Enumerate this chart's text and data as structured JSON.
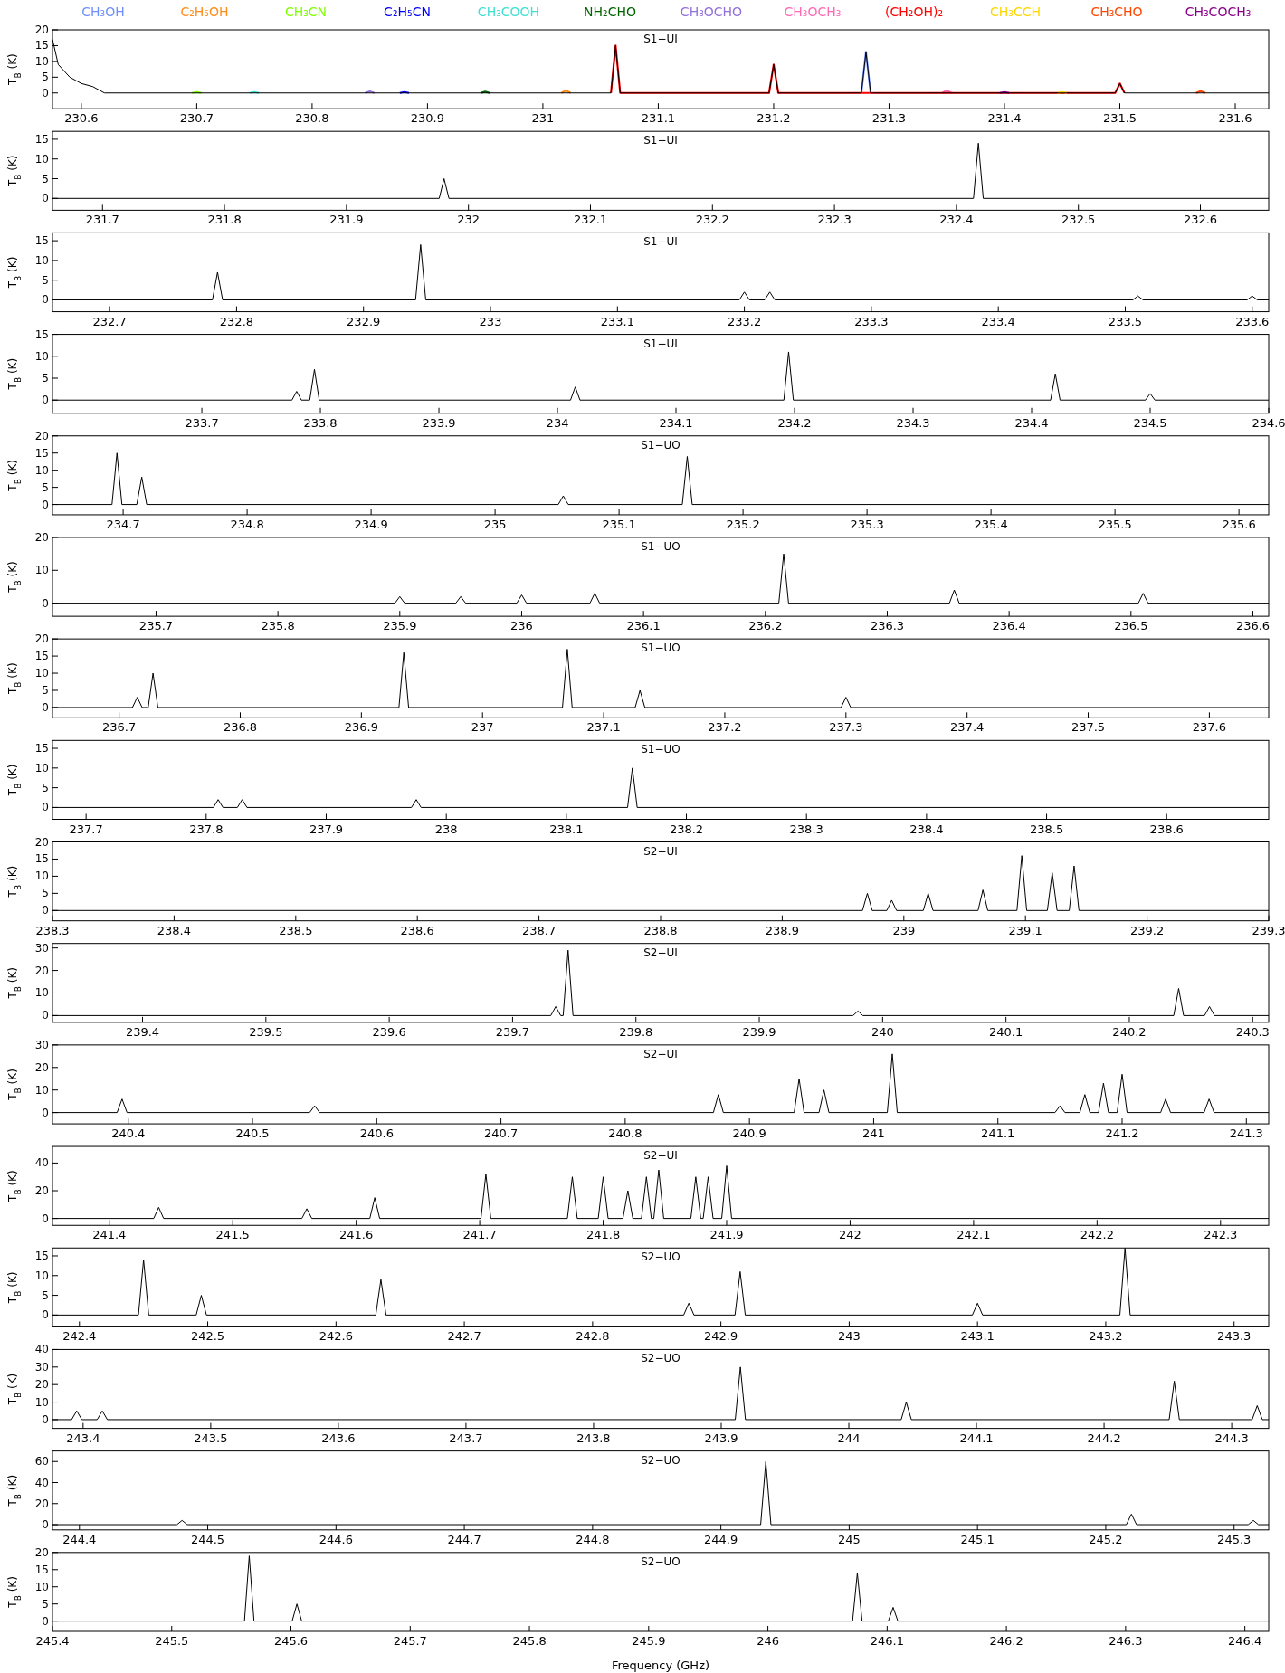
{
  "chart_data": [
    {
      "type": "line",
      "title": "S1−UI",
      "ylabel": "T$_{B}$ (K)",
      "legend": "top",
      "xlim": [
        230.575,
        231.629
      ],
      "xticks": [
        230.6,
        230.7,
        230.8,
        230.9,
        231,
        231.1,
        231.2,
        231.3,
        231.4,
        231.5,
        231.6
      ],
      "ylim": [
        -5,
        20
      ],
      "yticks": [
        0,
        5,
        10,
        15,
        20
      ],
      "series": [
        {
          "color": "#000000",
          "x": [
            230.575,
            230.58,
            230.59,
            230.6,
            230.61,
            230.62,
            231.059,
            231.063,
            231.067,
            231.196,
            231.2,
            231.204,
            231.276,
            231.28,
            231.284,
            231.496,
            231.5,
            231.504,
            231.629
          ],
          "values": [
            17,
            9,
            5,
            3,
            2,
            0,
            0,
            15,
            0,
            0,
            9,
            0,
            0,
            13,
            0,
            0,
            3,
            0,
            0
          ]
        },
        {
          "name": "CH₃OH",
          "color": "#6f8fff",
          "x": [
            231.276,
            231.28,
            231.284
          ],
          "values": [
            0,
            13,
            0
          ]
        },
        {
          "name": "C₂H₅OH",
          "color": "#ff8c1a",
          "x": [
            231.016,
            231.02,
            231.024
          ],
          "values": [
            0,
            0.8,
            0
          ]
        },
        {
          "name": "CH₃CN",
          "color": "#80ff00",
          "x": [
            230.696,
            230.7,
            230.704
          ],
          "values": [
            0,
            0.3,
            0
          ]
        },
        {
          "name": "C₂H₅CN",
          "color": "#0000ff",
          "x": [
            230.876,
            230.88,
            230.884
          ],
          "values": [
            0,
            0.3,
            0
          ]
        },
        {
          "name": "CH₃COOH",
          "color": "#40e0d0",
          "x": [
            230.746,
            230.75,
            230.754
          ],
          "values": [
            0,
            0.3,
            0
          ]
        },
        {
          "name": "NH₂CHO",
          "color": "#006400",
          "x": [
            230.946,
            230.95,
            230.954
          ],
          "values": [
            0,
            0.4,
            0
          ]
        },
        {
          "name": "CH₃OCHO",
          "color": "#9370db",
          "x": [
            230.846,
            230.85,
            230.854
          ],
          "values": [
            0,
            0.5,
            0
          ]
        },
        {
          "name": "CH₃OCH₃",
          "color": "#ff69b4",
          "x": [
            231.346,
            231.35,
            231.354
          ],
          "values": [
            0,
            0.8,
            0
          ]
        },
        {
          "name": "(CH₂OH)₂",
          "color": "#ff0000",
          "x": [
            231.059,
            231.063,
            231.067,
            231.196,
            231.2,
            231.204,
            231.496,
            231.5,
            231.504
          ],
          "values": [
            0,
            15,
            0,
            0,
            9,
            0,
            0,
            3,
            0
          ]
        },
        {
          "name": "CH₃CCH",
          "color": "#ffd700",
          "x": [
            231.446,
            231.45,
            231.454
          ],
          "values": [
            0,
            0.3,
            0
          ]
        },
        {
          "name": "CH₃CHO",
          "color": "#ff4500",
          "x": [
            231.566,
            231.57,
            231.574
          ],
          "values": [
            0,
            0.6,
            0
          ]
        },
        {
          "name": "CH₃COCH₃",
          "color": "#8b008b",
          "x": [
            231.396,
            231.4,
            231.404
          ],
          "values": [
            0,
            0.3,
            0
          ]
        }
      ]
    },
    {
      "type": "line",
      "title": "S1−UI",
      "ylabel": "T$_{B}$ (K)",
      "xlim": [
        231.659,
        232.656
      ],
      "xticks": [
        231.7,
        231.8,
        231.9,
        232,
        232.1,
        232.2,
        232.3,
        232.4,
        232.5,
        232.6
      ],
      "ylim": [
        -3,
        17
      ],
      "yticks": [
        0,
        5,
        10,
        15
      ],
      "series": [
        {
          "color": "#000000",
          "x": [
            231.659,
            231.976,
            231.98,
            231.984,
            232.414,
            232.418,
            232.422,
            232.656
          ],
          "values": [
            0,
            0,
            5,
            0,
            0,
            14,
            0,
            0
          ]
        }
      ]
    },
    {
      "type": "line",
      "title": "S1−UI",
      "ylabel": "T$_{B}$ (K)",
      "xlim": [
        232.655,
        233.613
      ],
      "xticks": [
        232.7,
        232.8,
        232.9,
        233,
        233.1,
        233.2,
        233.3,
        233.4,
        233.5,
        233.6
      ],
      "ylim": [
        -3,
        17
      ],
      "yticks": [
        0,
        5,
        10,
        15
      ],
      "series": [
        {
          "color": "#000000",
          "x": [
            232.655,
            232.781,
            232.785,
            232.789,
            232.941,
            232.945,
            232.949,
            233.196,
            233.2,
            233.204,
            233.216,
            233.22,
            233.224,
            233.506,
            233.51,
            233.514,
            233.596,
            233.6,
            233.604,
            233.613
          ],
          "values": [
            0,
            0,
            7,
            0,
            0,
            14,
            0,
            0,
            2,
            0,
            0,
            2,
            0,
            0,
            1,
            0,
            0,
            1,
            0,
            0
          ]
        }
      ]
    },
    {
      "type": "line",
      "title": "S1−UI",
      "ylabel": "T$_{B}$ (K)",
      "xlim": [
        233.574,
        234.6
      ],
      "xticks": [
        233.7,
        233.8,
        233.9,
        234,
        234.1,
        234.2,
        234.3,
        234.4,
        234.5,
        234.6
      ],
      "ylim": [
        -3,
        15
      ],
      "yticks": [
        0,
        5,
        10,
        15
      ],
      "series": [
        {
          "color": "#000000",
          "x": [
            233.574,
            233.776,
            233.78,
            233.784,
            233.791,
            233.795,
            233.799,
            234.011,
            234.015,
            234.019,
            234.191,
            234.195,
            234.199,
            234.416,
            234.42,
            234.424,
            234.496,
            234.5,
            234.504,
            234.6
          ],
          "values": [
            0,
            0,
            2,
            0,
            0,
            7,
            0,
            0,
            3,
            0,
            0,
            11,
            0,
            0,
            6,
            0,
            0,
            1.5,
            0,
            0
          ]
        }
      ]
    },
    {
      "type": "line",
      "title": "S1−UO",
      "ylabel": "T$_{B}$ (K)",
      "xlim": [
        234.643,
        235.624
      ],
      "xticks": [
        234.7,
        234.8,
        234.9,
        235,
        235.1,
        235.2,
        235.3,
        235.4,
        235.5,
        235.6
      ],
      "ylim": [
        -3,
        20
      ],
      "yticks": [
        0,
        5,
        10,
        15,
        20
      ],
      "series": [
        {
          "color": "#000000",
          "x": [
            234.643,
            234.691,
            234.695,
            234.699,
            234.711,
            234.715,
            234.719,
            235.051,
            235.055,
            235.059,
            235.151,
            235.155,
            235.159,
            235.624
          ],
          "values": [
            0,
            0,
            15,
            0,
            0,
            8,
            0,
            0,
            2.5,
            0,
            0,
            14,
            0,
            0
          ]
        }
      ]
    },
    {
      "type": "line",
      "title": "S1−UO",
      "ylabel": "T$_{B}$ (K)",
      "xlim": [
        235.615,
        236.613
      ],
      "xticks": [
        235.7,
        235.8,
        235.9,
        236,
        236.1,
        236.2,
        236.3,
        236.4,
        236.5,
        236.6
      ],
      "ylim": [
        -4,
        20
      ],
      "yticks": [
        0,
        10,
        20
      ],
      "series": [
        {
          "color": "#000000",
          "x": [
            235.615,
            235.896,
            235.9,
            235.904,
            235.946,
            235.95,
            235.954,
            235.996,
            236,
            236.004,
            236.056,
            236.06,
            236.064,
            236.211,
            236.215,
            236.219,
            236.351,
            236.355,
            236.359,
            236.506,
            236.51,
            236.514,
            236.613
          ],
          "values": [
            0,
            0,
            2,
            0,
            0,
            2,
            0,
            0,
            2.5,
            0,
            0,
            3,
            0,
            0,
            15,
            0,
            0,
            4,
            0,
            0,
            3,
            0,
            0
          ]
        }
      ]
    },
    {
      "type": "line",
      "title": "S1−UO",
      "ylabel": "T$_{B}$ (K)",
      "xlim": [
        236.645,
        237.649
      ],
      "xticks": [
        236.7,
        236.8,
        236.9,
        237,
        237.1,
        237.2,
        237.3,
        237.4,
        237.5,
        237.6
      ],
      "ylim": [
        -3,
        20
      ],
      "yticks": [
        0,
        5,
        10,
        15,
        20
      ],
      "series": [
        {
          "color": "#000000",
          "x": [
            236.645,
            236.711,
            236.715,
            236.719,
            236.724,
            236.728,
            236.732,
            236.931,
            236.935,
            236.939,
            237.066,
            237.07,
            237.074,
            237.126,
            237.13,
            237.134,
            237.296,
            237.3,
            237.304,
            237.649
          ],
          "values": [
            0,
            0,
            3,
            0,
            0,
            10,
            0,
            0,
            16,
            0,
            0,
            17,
            0,
            0,
            5,
            0,
            0,
            3,
            0,
            0
          ]
        }
      ]
    },
    {
      "type": "line",
      "title": "S1−UO",
      "ylabel": "T$_{B}$ (K)",
      "xlim": [
        237.672,
        238.685
      ],
      "xticks": [
        237.7,
        237.8,
        237.9,
        238,
        238.1,
        238.2,
        238.3,
        238.4,
        238.5,
        238.6
      ],
      "ylim": [
        -3,
        17
      ],
      "yticks": [
        0,
        5,
        10,
        15
      ],
      "series": [
        {
          "color": "#000000",
          "x": [
            237.672,
            237.806,
            237.81,
            237.814,
            237.826,
            237.83,
            237.834,
            237.971,
            237.975,
            237.979,
            238.151,
            238.155,
            238.159,
            238.685
          ],
          "values": [
            0,
            0,
            2,
            0,
            0,
            2,
            0,
            0,
            2,
            0,
            0,
            10,
            0,
            0
          ]
        }
      ]
    },
    {
      "type": "line",
      "title": "S2−UI",
      "ylabel": "T$_{B}$ (K)",
      "xlim": [
        238.3,
        239.3
      ],
      "xticks": [
        238.3,
        238.4,
        238.5,
        238.6,
        238.7,
        238.8,
        238.9,
        239,
        239.1,
        239.2,
        239.3
      ],
      "ylim": [
        -3,
        20
      ],
      "yticks": [
        0,
        5,
        10,
        15,
        20
      ],
      "series": [
        {
          "color": "#000000",
          "x": [
            238.3,
            238.966,
            238.97,
            238.974,
            238.986,
            238.99,
            238.994,
            239.016,
            239.02,
            239.024,
            239.061,
            239.065,
            239.069,
            239.093,
            239.097,
            239.101,
            239.118,
            239.122,
            239.126,
            239.136,
            239.14,
            239.144,
            239.3
          ],
          "values": [
            0,
            0,
            5,
            0,
            0,
            3,
            0,
            0,
            5,
            0,
            0,
            6,
            0,
            0,
            16,
            0,
            0,
            11,
            0,
            0,
            13,
            0,
            0
          ]
        }
      ]
    },
    {
      "type": "line",
      "title": "S2−UI",
      "ylabel": "T$_{B}$ (K)",
      "xlim": [
        239.327,
        240.313
      ],
      "xticks": [
        239.4,
        239.5,
        239.6,
        239.7,
        239.8,
        239.9,
        240,
        240.1,
        240.2,
        240.3
      ],
      "ylim": [
        -3,
        32
      ],
      "yticks": [
        0,
        10,
        20,
        30
      ],
      "series": [
        {
          "color": "#000000",
          "x": [
            239.327,
            239.731,
            239.735,
            239.739,
            239.741,
            239.745,
            239.749,
            239.976,
            239.98,
            239.984,
            240.236,
            240.24,
            240.244,
            240.261,
            240.265,
            240.269,
            240.313
          ],
          "values": [
            0,
            0,
            4,
            0,
            0,
            29,
            0,
            0,
            2,
            0,
            0,
            12,
            0,
            0,
            4,
            0,
            0
          ]
        }
      ]
    },
    {
      "type": "line",
      "title": "S2−UI",
      "ylabel": "T$_{B}$ (K)",
      "xlim": [
        240.339,
        241.318
      ],
      "xticks": [
        240.4,
        240.5,
        240.6,
        240.7,
        240.8,
        240.9,
        241,
        241.1,
        241.2,
        241.3
      ],
      "ylim": [
        -5,
        30
      ],
      "yticks": [
        0,
        10,
        20,
        30
      ],
      "series": [
        {
          "color": "#000000",
          "x": [
            240.339,
            240.391,
            240.395,
            240.399,
            240.546,
            240.55,
            240.554,
            240.871,
            240.875,
            240.879,
            240.936,
            240.94,
            240.944,
            240.956,
            240.96,
            240.964,
            241.011,
            241.015,
            241.019,
            241.146,
            241.15,
            241.154,
            241.166,
            241.17,
            241.174,
            241.181,
            241.185,
            241.189,
            241.196,
            241.2,
            241.204,
            241.231,
            241.235,
            241.239,
            241.266,
            241.27,
            241.274,
            241.318
          ],
          "values": [
            0,
            0,
            6,
            0,
            0,
            3,
            0,
            0,
            8,
            0,
            0,
            15,
            0,
            0,
            10,
            0,
            0,
            26,
            0,
            0,
            3,
            0,
            0,
            8,
            0,
            0,
            13,
            0,
            0,
            17,
            0,
            0,
            6,
            0,
            0,
            6,
            0,
            0
          ]
        }
      ]
    },
    {
      "type": "line",
      "title": "S2−UI",
      "ylabel": "T$_{B}$ (K)",
      "xlim": [
        241.354,
        242.339
      ],
      "xticks": [
        241.4,
        241.5,
        241.6,
        241.7,
        241.8,
        241.9,
        242,
        242.1,
        242.2,
        242.3
      ],
      "ylim": [
        -5,
        52
      ],
      "yticks": [
        0,
        20,
        40
      ],
      "series": [
        {
          "color": "#000000",
          "x": [
            241.354,
            241.436,
            241.44,
            241.444,
            241.556,
            241.56,
            241.564,
            241.611,
            241.615,
            241.619,
            241.701,
            241.705,
            241.709,
            241.771,
            241.775,
            241.779,
            241.796,
            241.8,
            241.804,
            241.816,
            241.82,
            241.824,
            241.831,
            241.835,
            241.839,
            241.841,
            241.845,
            241.849,
            241.871,
            241.875,
            241.879,
            241.881,
            241.885,
            241.889,
            241.896,
            241.9,
            241.904,
            242.339
          ],
          "values": [
            0,
            0,
            8,
            0,
            0,
            7,
            0,
            0,
            15,
            0,
            0,
            32,
            0,
            0,
            30,
            0,
            0,
            30,
            0,
            0,
            20,
            0,
            0,
            30,
            0,
            0,
            35,
            0,
            0,
            30,
            0,
            0,
            30,
            0,
            0,
            38,
            0,
            0
          ]
        }
      ]
    },
    {
      "type": "line",
      "title": "S2−UO",
      "ylabel": "T$_{B}$ (K)",
      "xlim": [
        242.379,
        243.327
      ],
      "xticks": [
        242.4,
        242.5,
        242.6,
        242.7,
        242.8,
        242.9,
        243,
        243.1,
        243.2,
        243.3
      ],
      "ylim": [
        -3,
        17
      ],
      "yticks": [
        0,
        5,
        10,
        15
      ],
      "series": [
        {
          "color": "#000000",
          "x": [
            242.379,
            242.446,
            242.45,
            242.454,
            242.491,
            242.495,
            242.499,
            242.631,
            242.635,
            242.639,
            242.871,
            242.875,
            242.879,
            242.911,
            242.915,
            242.919,
            243.096,
            243.1,
            243.104,
            243.211,
            243.215,
            243.219,
            243.327
          ],
          "values": [
            0,
            0,
            14,
            0,
            0,
            5,
            0,
            0,
            9,
            0,
            0,
            3,
            0,
            0,
            11,
            0,
            0,
            3,
            0,
            0,
            17,
            0,
            0
          ]
        }
      ]
    },
    {
      "type": "line",
      "title": "S2−UO",
      "ylabel": "T$_{B}$ (K)",
      "xlim": [
        243.376,
        244.329
      ],
      "xticks": [
        243.4,
        243.5,
        243.6,
        243.7,
        243.8,
        243.9,
        244,
        244.1,
        244.2,
        244.3
      ],
      "ylim": [
        -5,
        40
      ],
      "yticks": [
        0,
        10,
        20,
        30,
        40
      ],
      "series": [
        {
          "color": "#000000",
          "x": [
            243.376,
            243.391,
            243.395,
            243.399,
            243.411,
            243.415,
            243.419,
            243.911,
            243.915,
            243.919,
            244.041,
            244.045,
            244.049,
            244.251,
            244.255,
            244.259,
            244.316,
            244.32,
            244.324,
            244.329
          ],
          "values": [
            0,
            0,
            5,
            0,
            0,
            5,
            0,
            0,
            30,
            0,
            0,
            10,
            0,
            0,
            22,
            0,
            0,
            8,
            0,
            0
          ]
        }
      ]
    },
    {
      "type": "line",
      "title": "S2−UO",
      "ylabel": "T$_{B}$ (K)",
      "xlim": [
        244.379,
        245.327
      ],
      "xticks": [
        244.4,
        244.5,
        244.6,
        244.7,
        244.8,
        244.9,
        245,
        245.1,
        245.2,
        245.3
      ],
      "ylim": [
        -5,
        70
      ],
      "yticks": [
        0,
        20,
        40,
        60
      ],
      "series": [
        {
          "color": "#000000",
          "x": [
            244.379,
            244.476,
            244.48,
            244.484,
            244.931,
            244.935,
            244.939,
            245.216,
            245.22,
            245.224,
            245.311,
            245.315,
            245.319,
            245.327
          ],
          "values": [
            0,
            0,
            4,
            0,
            0,
            60,
            0,
            0,
            10,
            0,
            0,
            4,
            0,
            0
          ]
        }
      ]
    },
    {
      "type": "line",
      "title": "S2−UO",
      "ylabel": "T$_{B}$ (K)",
      "xlabel": "Frequency (GHz)",
      "xlim": [
        245.4,
        246.42
      ],
      "xticks": [
        245.4,
        245.5,
        245.6,
        245.7,
        245.8,
        245.9,
        246,
        246.1,
        246.2,
        246.3,
        246.4
      ],
      "ylim": [
        -3,
        20
      ],
      "yticks": [
        0,
        5,
        10,
        15,
        20
      ],
      "series": [
        {
          "color": "#000000",
          "x": [
            245.4,
            245.561,
            245.565,
            245.569,
            245.601,
            245.605,
            245.609,
            246.071,
            246.075,
            246.079,
            246.101,
            246.105,
            246.109,
            246.42
          ],
          "values": [
            0,
            0,
            19,
            0,
            0,
            5,
            0,
            0,
            14,
            0,
            0,
            4,
            0,
            0
          ]
        }
      ]
    }
  ]
}
